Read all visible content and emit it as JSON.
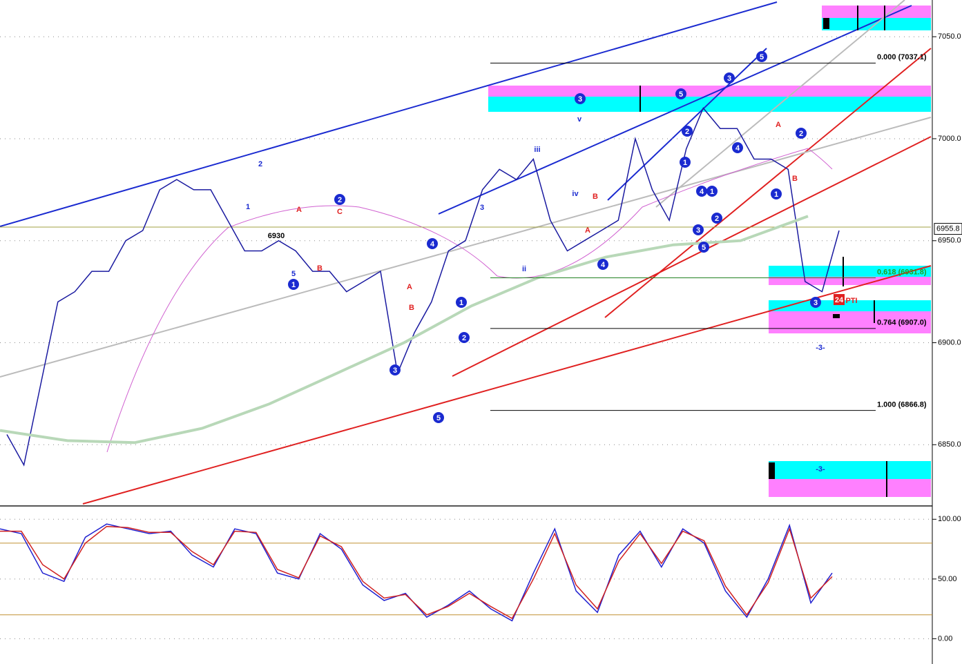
{
  "chart_data": [
    {
      "type": "line",
      "ylim": [
        6821,
        7068
      ],
      "yticks": [
        {
          "value": 6850,
          "label": "6850.0"
        },
        {
          "value": 6900,
          "label": "6900.0"
        },
        {
          "value": 6950,
          "label": "6950.0"
        },
        {
          "value": 7000,
          "label": "7000.0"
        },
        {
          "value": 7050,
          "label": "7050.0"
        }
      ],
      "series": [
        {
          "color": "#1a1aa0",
          "values": [
            6855,
            6840,
            6880,
            6920,
            6925,
            6935,
            6935,
            6950,
            6955,
            6975,
            6980,
            6975,
            6975,
            6960,
            6945,
            6945,
            6950,
            6945,
            6935,
            6935,
            6925,
            6930,
            6935,
            6885,
            6905,
            6920,
            6945,
            6950,
            6975,
            6985,
            6980,
            6990,
            6960,
            6945,
            6950,
            6955,
            6960,
            7000,
            6975,
            6960,
            6995,
            7015,
            7005,
            7005,
            6990,
            6990,
            6985,
            6930,
            6925,
            6955
          ]
        },
        {
          "color": "#b8d8b8",
          "values": [
            6857,
            6852,
            6851,
            6858,
            6870,
            6885,
            6900,
            6918,
            6932,
            6942,
            6948,
            6950,
            6962
          ]
        }
      ],
      "price_label": {
        "value": 6955.8,
        "label": "6955.8"
      },
      "fib_levels": [
        {
          "value": 7037.1,
          "label": "0.000 (7037.1)"
        },
        {
          "value": 6931.8,
          "label": "0.618 (6931.8)"
        },
        {
          "value": 6907.0,
          "label": "0.764 (6907.0)"
        },
        {
          "value": 6866.8,
          "label": "1.000 (6866.8)"
        }
      ],
      "annotations": [
        "1",
        "3",
        "5",
        "4",
        "2",
        "1",
        "2",
        "3",
        "4",
        "5",
        "2",
        "1",
        "4",
        "1",
        "2",
        "3",
        "5",
        "3",
        "4",
        "5",
        "1",
        "2",
        "3",
        "A",
        "B",
        "C",
        "A",
        "B",
        "A",
        "B",
        "A",
        "B",
        "6930",
        "24",
        "PTI",
        "-3-",
        "-3-",
        "iii",
        "iv",
        "ii",
        "v",
        "3",
        "5",
        "1",
        "2"
      ]
    },
    {
      "type": "line",
      "ylim": [
        -20,
        110
      ],
      "yticks": [
        {
          "value": 0,
          "label": "0.00"
        },
        {
          "value": 50,
          "label": "50.00"
        },
        {
          "value": 100,
          "label": "100.00"
        }
      ],
      "levels": [
        20,
        80
      ],
      "series": [
        {
          "color": "#2020d0",
          "values": [
            92,
            88,
            55,
            48,
            85,
            96,
            92,
            88,
            90,
            70,
            60,
            92,
            88,
            55,
            50,
            88,
            75,
            45,
            32,
            38,
            18,
            28,
            40,
            25,
            15,
            55,
            92,
            40,
            22,
            70,
            90,
            60,
            92,
            80,
            40,
            18,
            50,
            95,
            30,
            55
          ]
        },
        {
          "color": "#d02020",
          "values": [
            90,
            90,
            62,
            50,
            80,
            94,
            93,
            89,
            89,
            73,
            62,
            90,
            89,
            58,
            51,
            86,
            77,
            48,
            34,
            37,
            20,
            27,
            38,
            27,
            17,
            50,
            88,
            45,
            25,
            65,
            88,
            63,
            90,
            82,
            44,
            20,
            47,
            92,
            34,
            52
          ]
        }
      ]
    }
  ]
}
